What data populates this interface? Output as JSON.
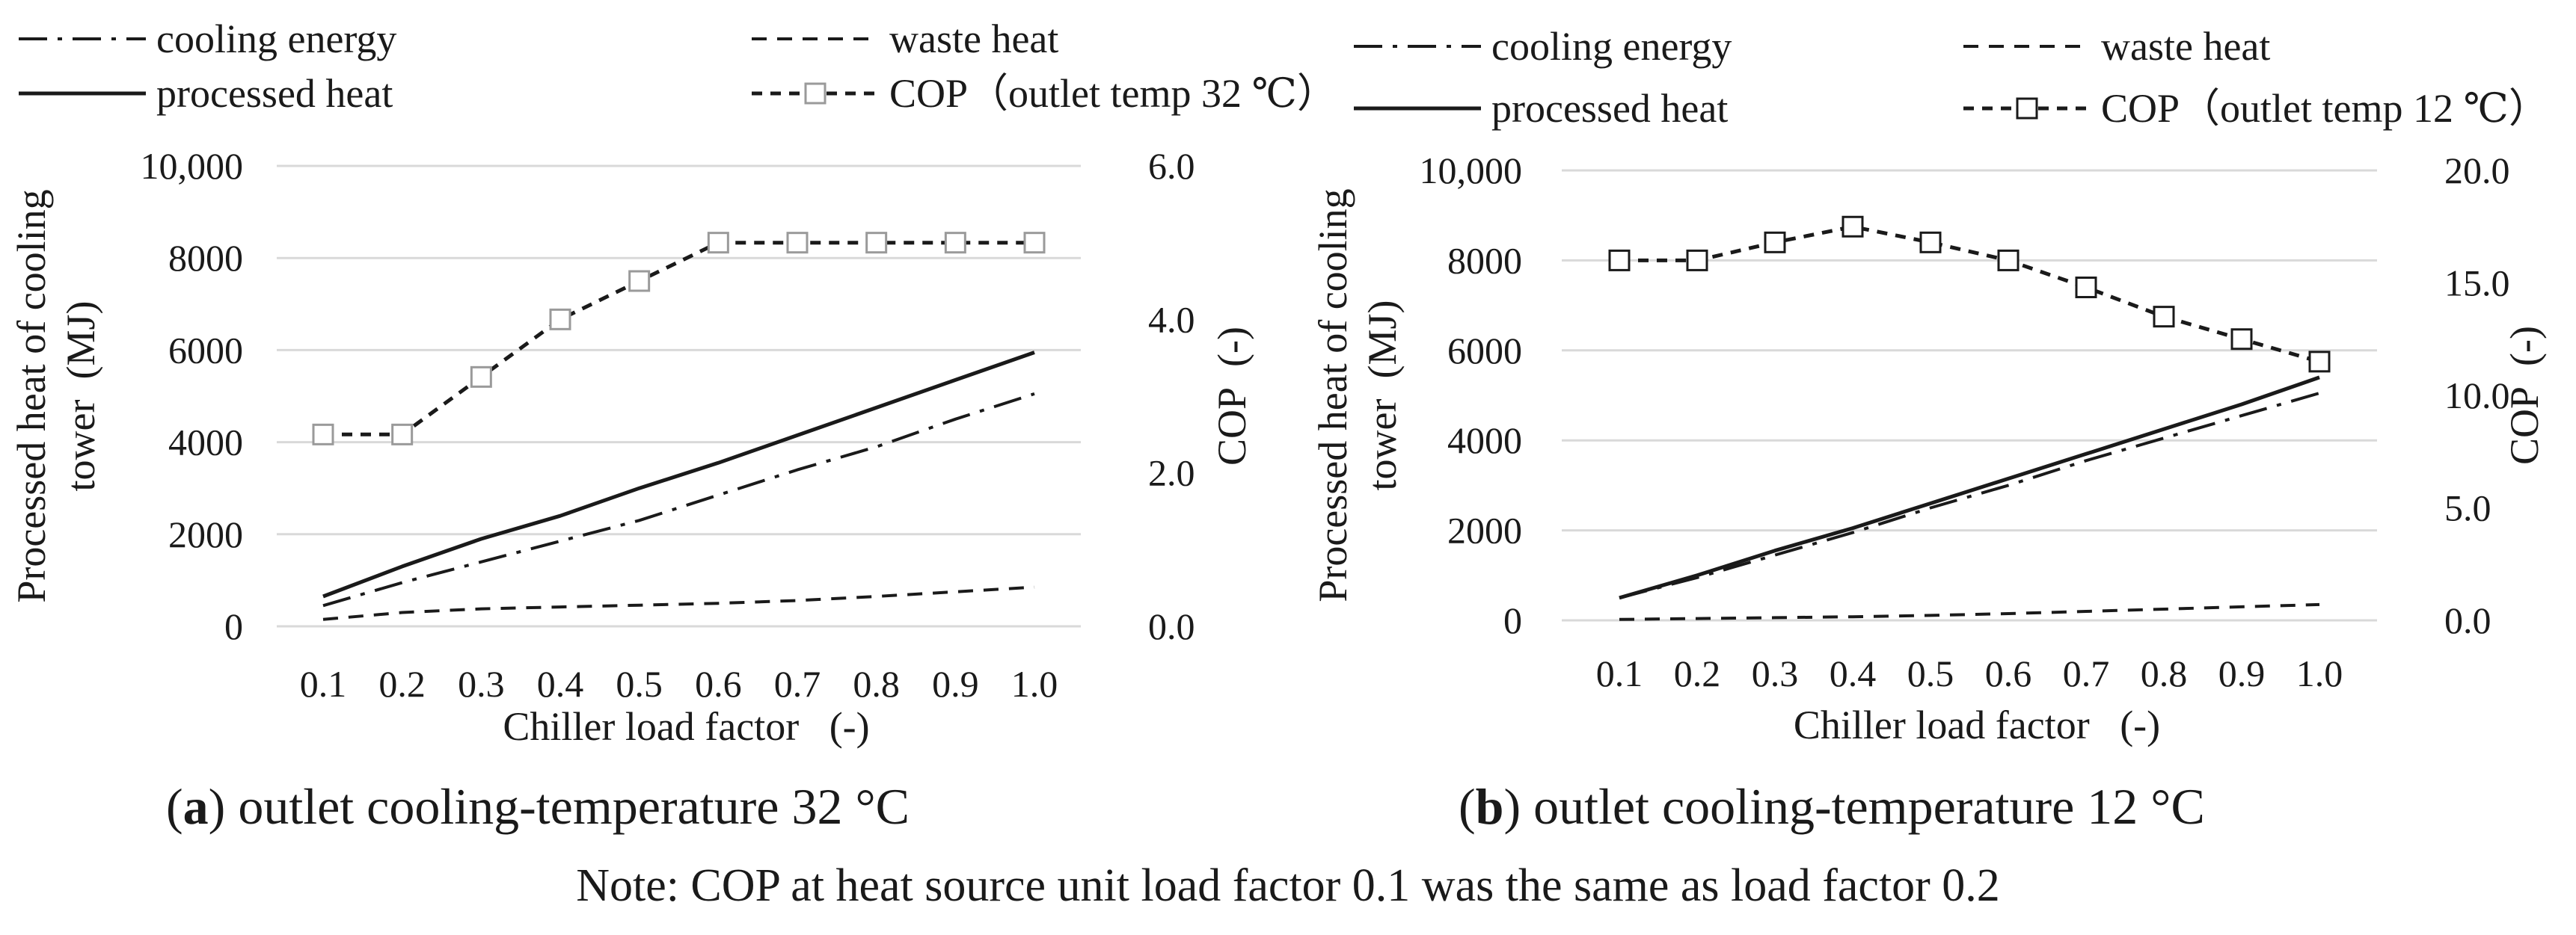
{
  "figure": {
    "note": "Note: COP at heat source unit load factor 0.1 was the same as load factor 0.2"
  },
  "chart_data": [
    {
      "type": "line",
      "panel_letter": "a",
      "caption": "outlet cooling-temperature 32 °C",
      "xlabel": "Chiller load factor   (-)",
      "ylabel_line1": "Processed heat of cooling",
      "ylabel_line2": "tower  (MJ)",
      "y2label": "COP  (-)",
      "x": [
        0.1,
        0.2,
        0.3,
        0.4,
        0.5,
        0.6,
        0.7,
        0.8,
        0.9,
        1.0
      ],
      "x_ticks": [
        "0.1",
        "0.2",
        "0.3",
        "0.4",
        "0.5",
        "0.6",
        "0.7",
        "0.8",
        "0.9",
        "1.0"
      ],
      "ylim": [
        0,
        10000
      ],
      "y_ticks": [
        0,
        2000,
        4000,
        6000,
        8000,
        10000
      ],
      "y_tick_labels": [
        "0",
        "2000",
        "4000",
        "6000",
        "8000",
        "10,000"
      ],
      "y2lim": [
        0,
        6
      ],
      "y2_ticks": [
        0,
        2,
        4,
        6
      ],
      "y2_tick_labels": [
        "0.0",
        "2.0",
        "4.0",
        "6.0"
      ],
      "grid": true,
      "legend": {
        "cooling_energy": "cooling energy",
        "waste_heat": "waste heat",
        "processed_heat": "processed heat",
        "cop": "COP（outlet temp 32 ℃）"
      },
      "series": [
        {
          "key": "cooling_energy",
          "name": "cooling energy",
          "axis": "left",
          "style": "dashdot",
          "values": [
            450,
            950,
            1400,
            1850,
            2300,
            2850,
            3400,
            3900,
            4500,
            5050
          ]
        },
        {
          "key": "waste_heat",
          "name": "waste heat",
          "axis": "left",
          "style": "dashed",
          "values": [
            150,
            300,
            380,
            420,
            460,
            500,
            560,
            650,
            750,
            850
          ]
        },
        {
          "key": "processed_heat",
          "name": "processed heat",
          "axis": "left",
          "style": "solid",
          "values": [
            650,
            1300,
            1900,
            2400,
            3000,
            3550,
            4150,
            4750,
            5350,
            5950
          ]
        },
        {
          "key": "cop",
          "name": "COP（outlet temp 32 ℃）",
          "axis": "right",
          "style": "dashed-square",
          "marker_fill": "#ffffff",
          "marker_stroke": "#9a9a9a",
          "values": [
            2.5,
            2.5,
            3.25,
            4.0,
            4.5,
            5.0,
            5.0,
            5.0,
            5.0,
            5.0
          ]
        }
      ]
    },
    {
      "type": "line",
      "panel_letter": "b",
      "caption": "outlet cooling-temperature 12 °C",
      "xlabel": "Chiller load factor   (-)",
      "ylabel_line1": "Processed heat of cooling",
      "ylabel_line2": "tower  (MJ)",
      "y2label": "COP  (-)",
      "x": [
        0.1,
        0.2,
        0.3,
        0.4,
        0.5,
        0.6,
        0.7,
        0.8,
        0.9,
        1.0
      ],
      "x_ticks": [
        "0.1",
        "0.2",
        "0.3",
        "0.4",
        "0.5",
        "0.6",
        "0.7",
        "0.8",
        "0.9",
        "1.0"
      ],
      "ylim": [
        0,
        10000
      ],
      "y_ticks": [
        0,
        2000,
        4000,
        6000,
        8000,
        10000
      ],
      "y_tick_labels": [
        "0",
        "2000",
        "4000",
        "6000",
        "8000",
        "10,000"
      ],
      "y2lim": [
        0,
        20
      ],
      "y2_ticks": [
        0,
        5,
        10,
        15,
        20
      ],
      "y2_tick_labels": [
        "0.0",
        "5.0",
        "10.0",
        "15.0",
        "20.0"
      ],
      "grid": true,
      "legend": {
        "cooling_energy": "cooling energy",
        "waste_heat": "waste heat",
        "processed_heat": "processed heat",
        "cop": "COP（outlet temp 12 ℃）"
      },
      "series": [
        {
          "key": "cooling_energy",
          "name": "cooling energy",
          "axis": "left",
          "style": "dashdot",
          "values": [
            500,
            950,
            1450,
            1950,
            2500,
            3000,
            3550,
            4050,
            4550,
            5050
          ]
        },
        {
          "key": "waste_heat",
          "name": "waste heat",
          "axis": "left",
          "style": "dashed",
          "values": [
            20,
            40,
            60,
            80,
            110,
            150,
            200,
            250,
            300,
            350
          ]
        },
        {
          "key": "processed_heat",
          "name": "processed heat",
          "axis": "left",
          "style": "solid",
          "values": [
            500,
            1000,
            1550,
            2050,
            2600,
            3150,
            3700,
            4250,
            4800,
            5400
          ]
        },
        {
          "key": "cop",
          "name": "COP（outlet temp 12 ℃）",
          "axis": "right",
          "style": "dashed-square",
          "marker_fill": "#ffffff",
          "marker_stroke": "#1a1a1a",
          "values": [
            16.0,
            16.0,
            16.8,
            17.5,
            16.8,
            16.0,
            14.8,
            13.5,
            12.5,
            11.5
          ]
        }
      ]
    }
  ]
}
